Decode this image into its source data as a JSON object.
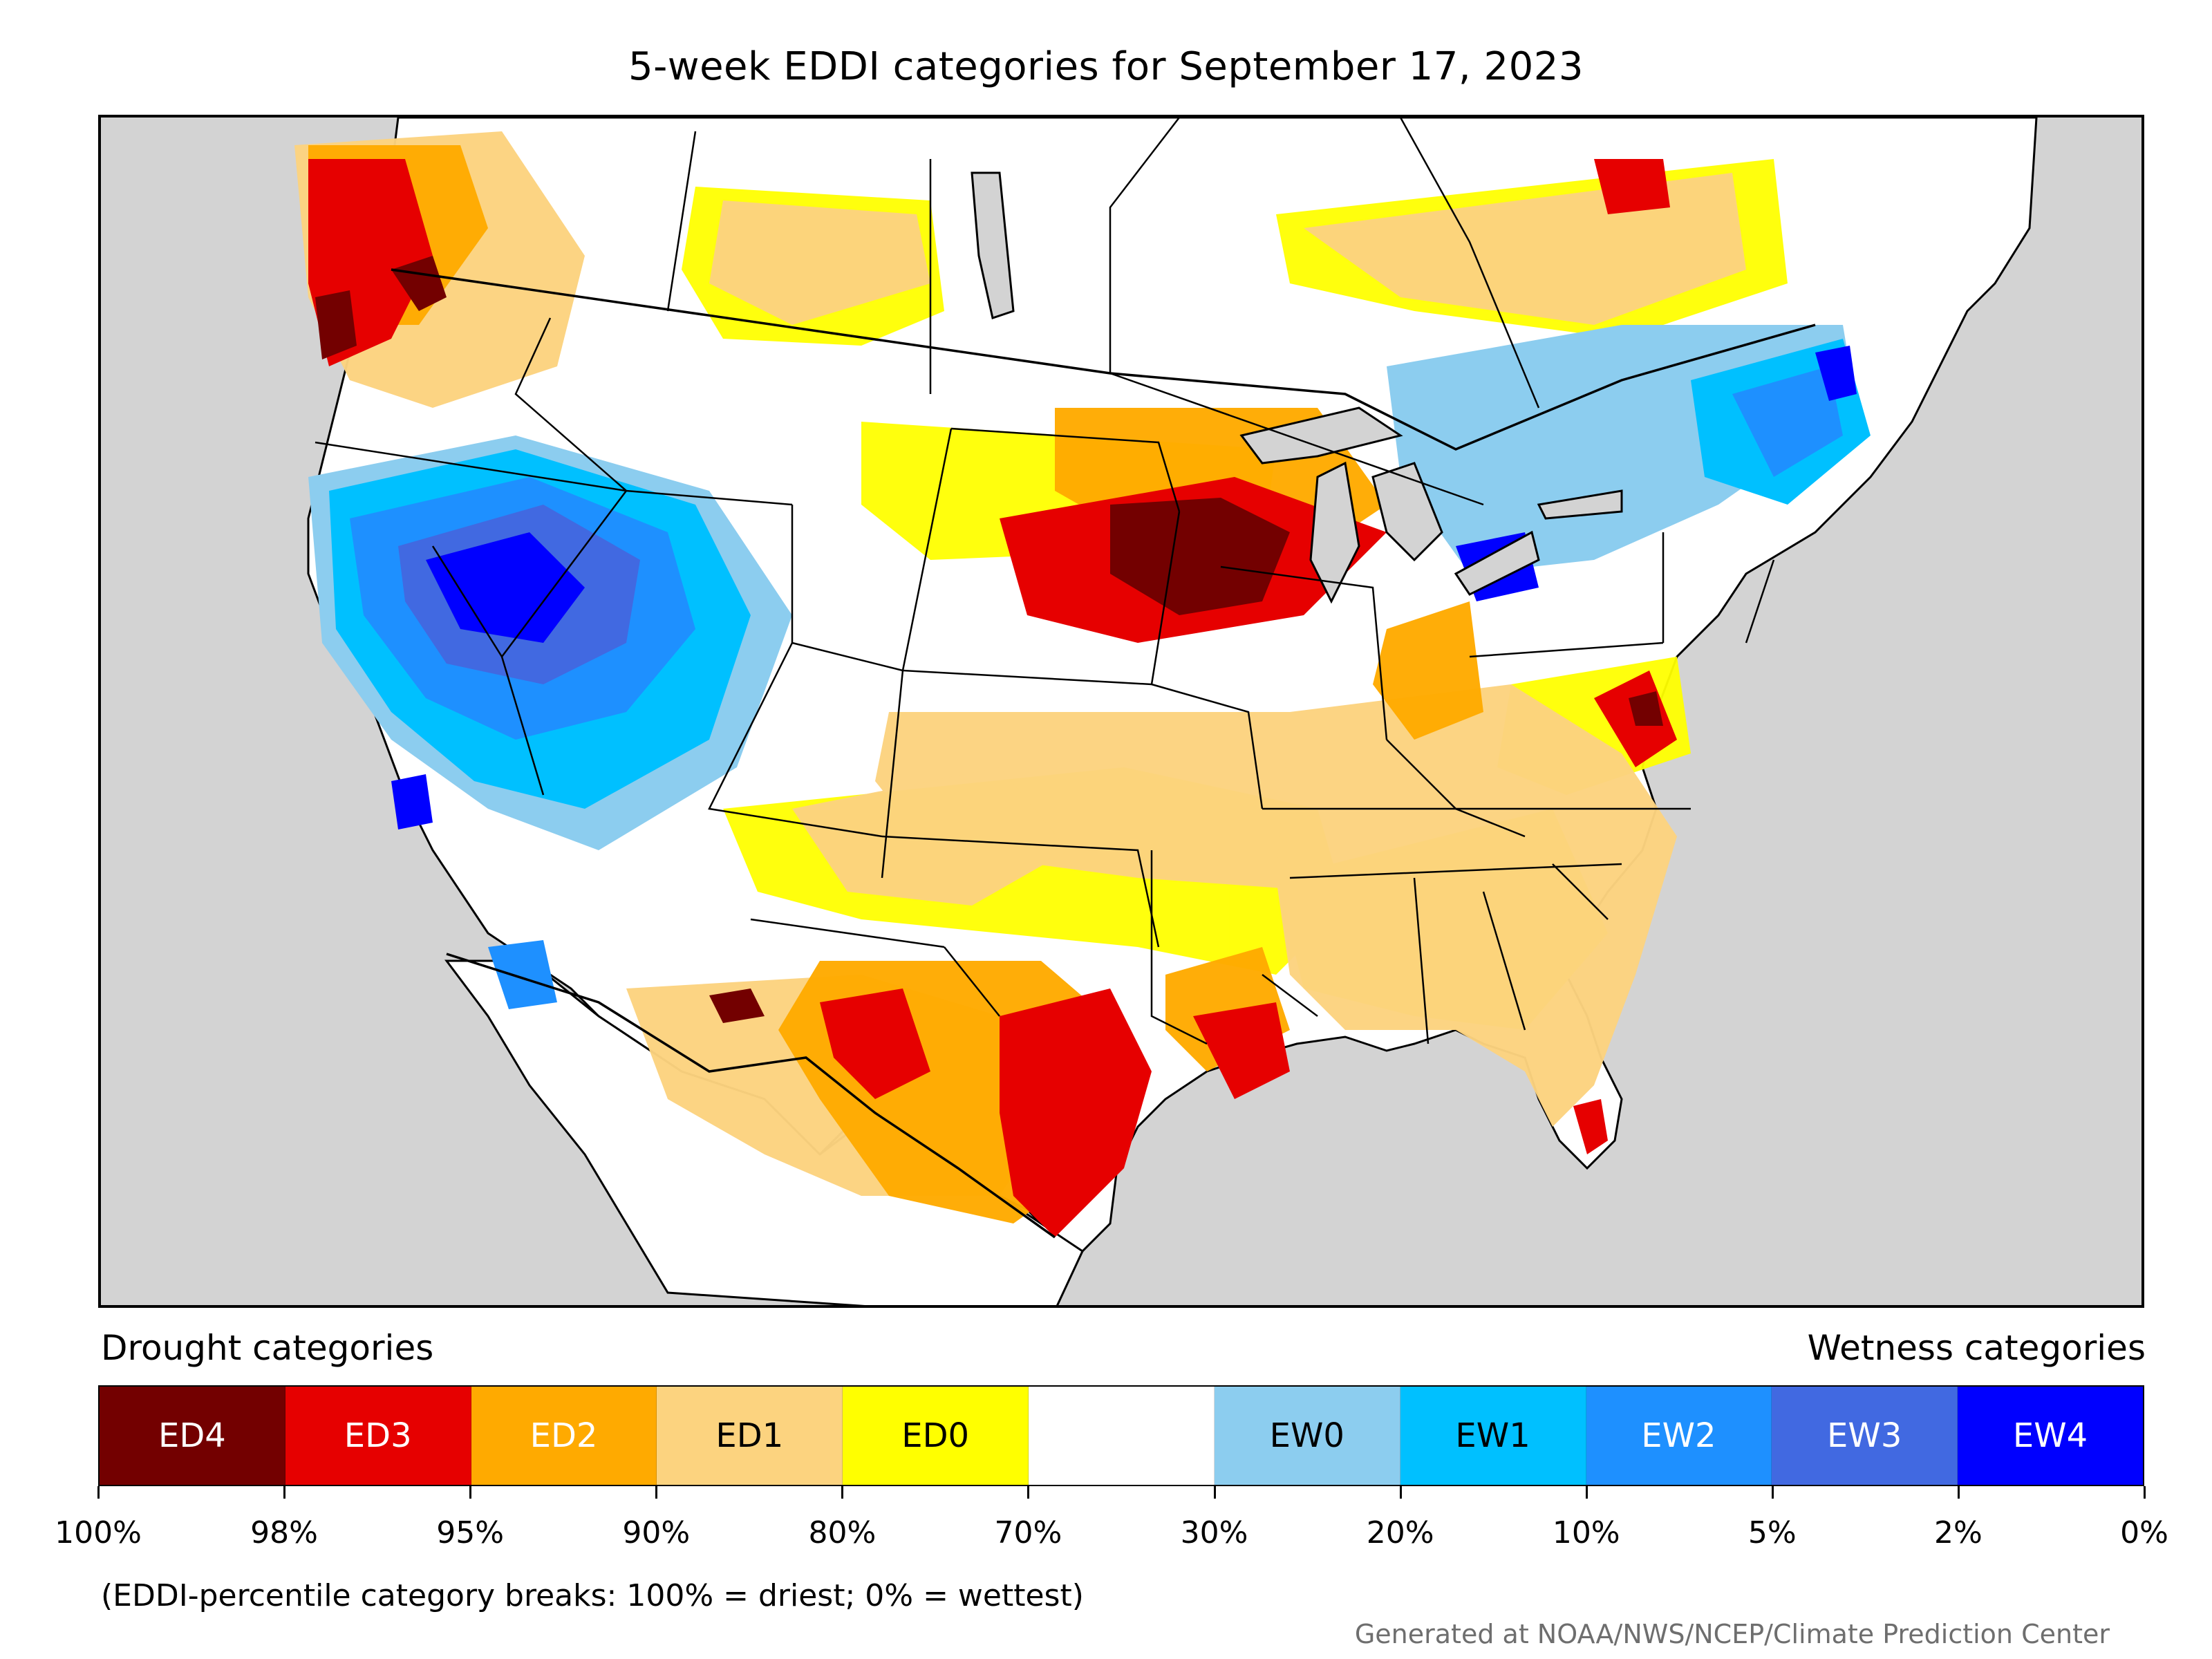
{
  "title": "5-week EDDI categories for September 17, 2023",
  "legend": {
    "drought_heading": "Drought categories",
    "wetness_heading": "Wetness categories",
    "categories": [
      {
        "label": "ED4",
        "color": "#730000",
        "text_color": "#ffffff"
      },
      {
        "label": "ED3",
        "color": "#e60000",
        "text_color": "#ffffff"
      },
      {
        "label": "ED2",
        "color": "#ffaa00",
        "text_color": "#ffffff"
      },
      {
        "label": "ED1",
        "color": "#fcd37f",
        "text_color": "#000000"
      },
      {
        "label": "ED0",
        "color": "#ffff00",
        "text_color": "#000000"
      },
      {
        "label": "",
        "color": "#ffffff",
        "text_color": "#000000"
      },
      {
        "label": "EW0",
        "color": "#8ccdef",
        "text_color": "#000000"
      },
      {
        "label": "EW1",
        "color": "#00c0ff",
        "text_color": "#000000"
      },
      {
        "label": "EW2",
        "color": "#1e90ff",
        "text_color": "#ffffff"
      },
      {
        "label": "EW3",
        "color": "#4169e1",
        "text_color": "#ffffff"
      },
      {
        "label": "EW4",
        "color": "#0000ff",
        "text_color": "#ffffff"
      }
    ],
    "tick_labels": [
      "100%",
      "98%",
      "95%",
      "90%",
      "80%",
      "70%",
      "30%",
      "20%",
      "10%",
      "5%",
      "2%",
      "0%"
    ]
  },
  "note": "(EDDI-percentile category breaks: 100% = driest; 0% = wettest)",
  "credit": "Generated at NOAA/NWS/NCEP/Climate Prediction Center",
  "map_colors": {
    "background": "#d3d3d3",
    "land": "#ffffff",
    "border": "#000000"
  }
}
